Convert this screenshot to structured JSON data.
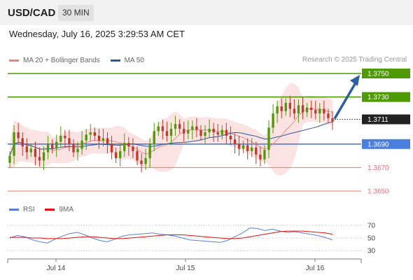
{
  "header": {
    "pair": "USD/CAD",
    "timeframe": "30 MIN",
    "datetime": "Wednesday, July 16, 2025 3:29:53 AM CET"
  },
  "legend": {
    "items": [
      {
        "label": "MA 20 + Bollinger Bands",
        "color": "#f08080"
      },
      {
        "label": "MA 50",
        "color": "#2e5797"
      }
    ],
    "credit": "Research © 2025 Trading Central"
  },
  "rsi_legend": {
    "items": [
      {
        "label": "RSI",
        "color": "#5b7fd6"
      },
      {
        "label": "9MA",
        "color": "#e01010"
      }
    ]
  },
  "colors": {
    "resistance": "#4d9a05",
    "pivot": "#4a7fe0",
    "support": "#f07070",
    "current": "#222222",
    "arrow": "#2d5fa6",
    "candle_up": "#4d9a05",
    "candle_down": "#c0392b"
  },
  "chart_data": [
    {
      "type": "candlestick",
      "title": "USD/CAD 30 MIN",
      "x_labels": [
        "Jul 14",
        "Jul 15",
        "Jul 16"
      ],
      "ylim": [
        1.364,
        1.376
      ],
      "levels": [
        {
          "value": "1.3750",
          "kind": "resistance"
        },
        {
          "value": "1.3730",
          "kind": "resistance"
        },
        {
          "value": "1.3711",
          "kind": "current"
        },
        {
          "value": "1.3690",
          "kind": "pivot"
        },
        {
          "value": "1.3670",
          "kind": "support"
        },
        {
          "value": "1.3650",
          "kind": "support"
        }
      ],
      "forecast_target": 1.375,
      "close_path": [
        1.368,
        1.37,
        1.3695,
        1.3688,
        1.3683,
        1.3686,
        1.3679,
        1.3676,
        1.3683,
        1.369,
        1.3686,
        1.3692,
        1.3697,
        1.3695,
        1.369,
        1.3683,
        1.3686,
        1.3693,
        1.3698,
        1.37,
        1.3697,
        1.3693,
        1.3695,
        1.369,
        1.3683,
        1.3678,
        1.3684,
        1.3691,
        1.3688,
        1.3684,
        1.3676,
        1.3673,
        1.3678,
        1.369,
        1.3701,
        1.3705,
        1.3701,
        1.3697,
        1.3703,
        1.3707,
        1.3703,
        1.3699,
        1.3702,
        1.3705,
        1.3702,
        1.3697,
        1.37,
        1.3703,
        1.37,
        1.3698,
        1.3702,
        1.3697,
        1.3694,
        1.369,
        1.3686,
        1.3689,
        1.3684,
        1.3687,
        1.3681,
        1.3677,
        1.3685,
        1.3704,
        1.3716,
        1.3722,
        1.3718,
        1.3725,
        1.372,
        1.3716,
        1.3723,
        1.3717,
        1.3721,
        1.3719,
        1.3716,
        1.372,
        1.3716,
        1.3712,
        1.3709
      ],
      "bands": {
        "upper_start": 1.371,
        "upper_end": 1.3735,
        "lower_start": 1.3675,
        "lower_end": 1.369
      }
    },
    {
      "type": "line",
      "title": "RSI",
      "yticks": [
        "70",
        "50",
        "30"
      ],
      "ylim": [
        25,
        75
      ],
      "series": [
        {
          "name": "RSI",
          "values": [
            50,
            54,
            52,
            47,
            44,
            42,
            48,
            53,
            57,
            59,
            55,
            50,
            46,
            44,
            48,
            53,
            55,
            56,
            57,
            58,
            56,
            55,
            53,
            50,
            47,
            46,
            45,
            44,
            43,
            46,
            52,
            58,
            66,
            65,
            62,
            64,
            61,
            59,
            60,
            58,
            56,
            54,
            51,
            47
          ]
        },
        {
          "name": "9MA",
          "values": [
            51,
            51,
            51,
            50,
            50,
            49,
            49,
            49,
            50,
            51,
            52,
            52,
            51,
            50,
            49,
            49,
            50,
            51,
            52,
            53,
            54,
            55,
            55,
            55,
            54,
            53,
            52,
            51,
            50,
            49,
            49,
            50,
            52,
            54,
            56,
            58,
            60,
            61,
            61,
            61,
            60,
            59,
            58,
            56
          ]
        }
      ]
    }
  ]
}
